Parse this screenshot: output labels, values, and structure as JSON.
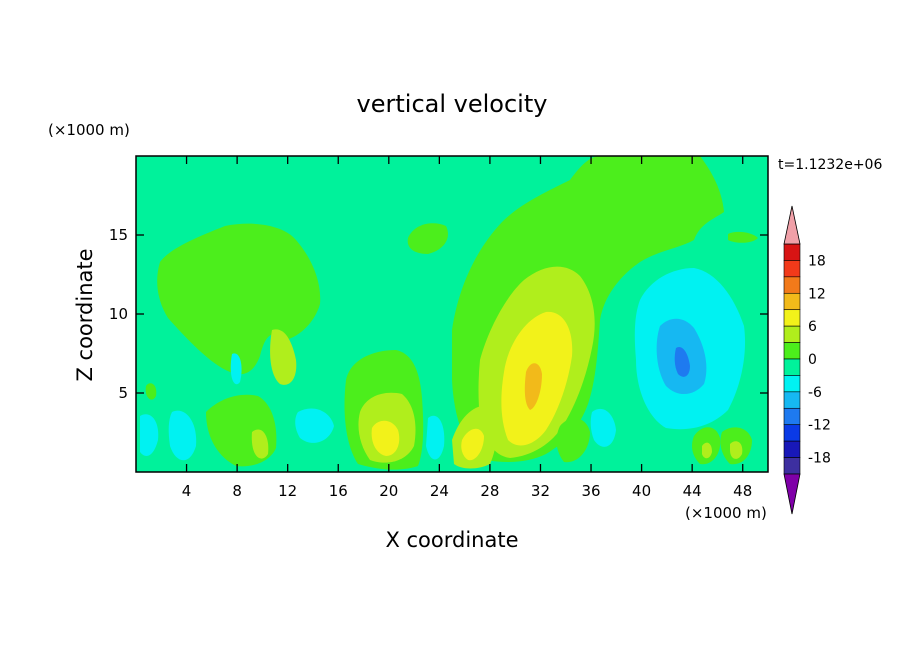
{
  "chart_data": {
    "type": "heatmap",
    "title": "vertical velocity",
    "xlabel": "X coordinate",
    "ylabel": "Z coordinate",
    "x_unit": "(×1000 m)",
    "y_unit": "(×1000 m)",
    "time_label": "t=1.1232e+06",
    "xlim": [
      0,
      50
    ],
    "ylim": [
      0,
      20
    ],
    "x_ticks": [
      4,
      8,
      12,
      16,
      20,
      24,
      28,
      32,
      36,
      40,
      44,
      48
    ],
    "y_ticks": [
      5,
      10,
      15
    ],
    "colorbar": {
      "levels": [
        -21,
        -18,
        -15,
        -12,
        -9,
        -6,
        -3,
        0,
        3,
        6,
        9,
        12,
        15,
        18,
        21
      ],
      "tick_labels": [
        18,
        12,
        6,
        0,
        -6,
        -12,
        -18
      ],
      "colors": [
        "#7f00a8",
        "#3d2fa0",
        "#1818b8",
        "#0a3ae6",
        "#1e7af0",
        "#16b8f2",
        "#00f2f2",
        "#00f29b",
        "#4cee1c",
        "#b0ee1c",
        "#f2f21a",
        "#f2ba1a",
        "#f27a1a",
        "#f23a1a",
        "#d81414",
        "#f0a0a8"
      ],
      "extend": "both"
    },
    "features": [
      {
        "kind": "region",
        "desc": "upper left updraft plume",
        "x": [
          2,
          15
        ],
        "z": [
          6,
          16
        ],
        "w": 3
      },
      {
        "kind": "region",
        "desc": "central updraft core",
        "x": [
          26,
          36
        ],
        "z": [
          1,
          14
        ],
        "w": 9
      },
      {
        "kind": "region",
        "desc": "downdraft column",
        "x": [
          38,
          48
        ],
        "z": [
          3,
          13
        ],
        "w": -6
      }
    ]
  }
}
